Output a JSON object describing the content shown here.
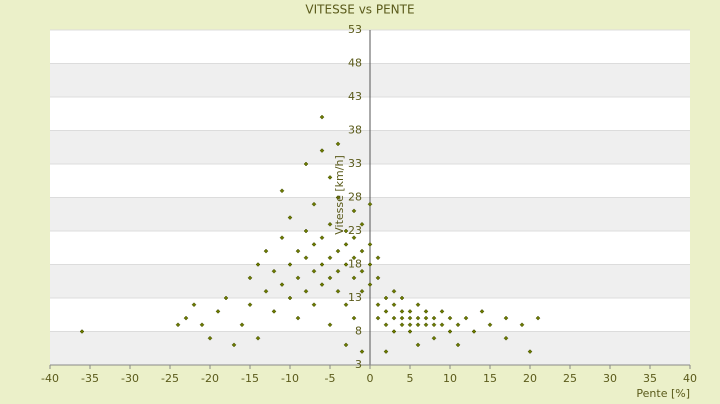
{
  "chart_data": {
    "type": "scatter",
    "title": "VITESSE vs PENTE",
    "xlabel": "Pente [%]",
    "ylabel": "Vitesse [km/h]",
    "xlim": [
      -40,
      40
    ],
    "xticks": [
      -40,
      -35,
      -30,
      -25,
      -20,
      -15,
      -10,
      -5,
      0,
      5,
      10,
      15,
      20,
      25,
      30,
      35,
      40
    ],
    "ylim": [
      3,
      53
    ],
    "yticks": [
      3,
      8,
      13,
      18,
      23,
      28,
      33,
      38,
      43,
      48,
      53
    ],
    "grid": true,
    "color": "#6b7a00",
    "series": [
      {
        "name": "Vitesse",
        "x": [
          -36,
          -23,
          -22,
          -21,
          -20,
          -19,
          -18,
          -17,
          -16,
          -15,
          -15,
          -14,
          -14,
          -13,
          -13,
          -12,
          -12,
          -11,
          -11,
          -11,
          -10,
          -10,
          -10,
          -9,
          -9,
          -9,
          -8,
          -8,
          -8,
          -8,
          -7,
          -7,
          -7,
          -7,
          -6,
          -6,
          -6,
          -6,
          -6,
          -5,
          -5,
          -5,
          -5,
          -5,
          -4,
          -4,
          -4,
          -4,
          -4,
          -3,
          -3,
          -3,
          -3,
          -3,
          -2,
          -2,
          -2,
          -2,
          -2,
          -1,
          -1,
          -1,
          -1,
          -1,
          0,
          0,
          0,
          0,
          1,
          1,
          1,
          1,
          2,
          2,
          2,
          2,
          3,
          3,
          3,
          3,
          4,
          4,
          4,
          4,
          5,
          5,
          5,
          5,
          6,
          6,
          6,
          6,
          7,
          7,
          7,
          8,
          8,
          8,
          9,
          9,
          10,
          10,
          11,
          11,
          12,
          13,
          14,
          15,
          17,
          17,
          19,
          20,
          21,
          -24
        ],
        "values": [
          8,
          10,
          12,
          9,
          7,
          11,
          13,
          6,
          9,
          16,
          12,
          18,
          7,
          14,
          20,
          11,
          17,
          15,
          22,
          29,
          13,
          18,
          25,
          16,
          20,
          10,
          14,
          19,
          23,
          33,
          17,
          21,
          12,
          27,
          15,
          18,
          22,
          35,
          40,
          16,
          19,
          24,
          31,
          9,
          17,
          20,
          14,
          36,
          28,
          18,
          21,
          23,
          12,
          6,
          16,
          19,
          22,
          26,
          10,
          17,
          20,
          24,
          14,
          5,
          18,
          21,
          15,
          27,
          16,
          12,
          19,
          10,
          11,
          13,
          9,
          5,
          10,
          12,
          8,
          14,
          9,
          11,
          10,
          13,
          9,
          10,
          11,
          8,
          9,
          10,
          12,
          6,
          9,
          10,
          11,
          9,
          10,
          7,
          9,
          11,
          8,
          10,
          9,
          6,
          10,
          8,
          11,
          9,
          10,
          7,
          9,
          5,
          10,
          9
        ]
      }
    ]
  }
}
